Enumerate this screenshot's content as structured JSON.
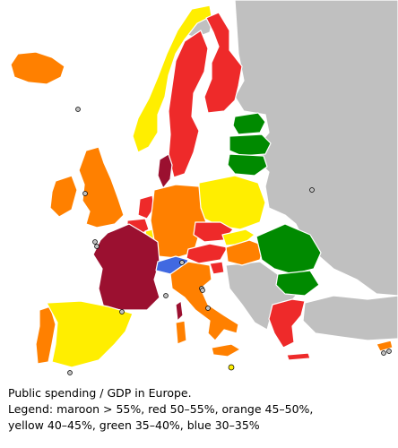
{
  "map": {
    "colors": {
      "maroon": "#9b1030",
      "red": "#ee2a2a",
      "orange": "#ff8000",
      "yellow": "#ffee00",
      "green": "#008a00",
      "blue": "#4169e1",
      "no_data": "#c0c0c0",
      "border": "#ffffff"
    }
  },
  "caption": {
    "title": "Public spending / GDP in Europe.",
    "legend_line1": "Legend: maroon > 55%, red 50–55%, orange 45–50%,",
    "legend_line2": "yellow 40–45%, green 35–40%, blue 30–35%"
  }
}
